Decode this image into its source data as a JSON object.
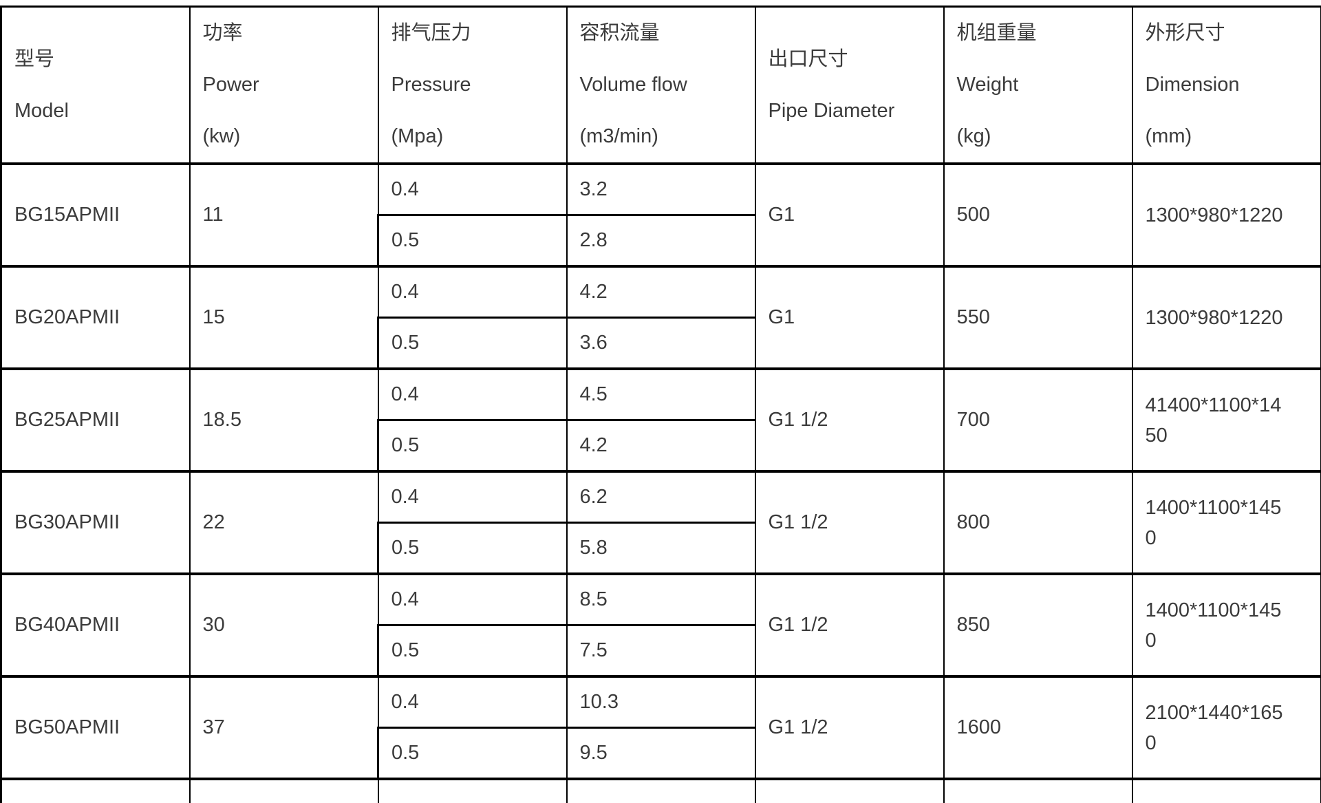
{
  "table": {
    "colors": {
      "border": "#000000",
      "text": "#3b3b3b",
      "background": "#ffffff"
    },
    "columns": [
      {
        "zh": "型号",
        "en": "Model",
        "unit": ""
      },
      {
        "zh": "功率",
        "en": "Power",
        "unit": "(kw)"
      },
      {
        "zh": "排气压力",
        "en": "Pressure",
        "unit": "(Mpa)"
      },
      {
        "zh": "容积流量",
        "en": "Volume flow",
        "unit": "(m3/min)"
      },
      {
        "zh": "出口尺寸",
        "en": "Pipe Diameter",
        "unit": ""
      },
      {
        "zh": "机组重量",
        "en": "Weight",
        "unit": "(kg)"
      },
      {
        "zh": "外形尺寸",
        "en": "Dimension",
        "unit": "(mm)"
      }
    ],
    "rows": [
      {
        "model": "BG15APMII",
        "power": "11",
        "pressures": [
          "0.4",
          "0.5"
        ],
        "flows": [
          "3.2",
          "2.8"
        ],
        "pipe": "G1",
        "weight": "500",
        "dimension": "1300*980*1220"
      },
      {
        "model": "BG20APMII",
        "power": "15",
        "pressures": [
          "0.4",
          "0.5"
        ],
        "flows": [
          "4.2",
          "3.6"
        ],
        "pipe": "G1",
        "weight": "550",
        "dimension": "1300*980*1220"
      },
      {
        "model": "BG25APMII",
        "power": "18.5",
        "pressures": [
          "0.4",
          "0.5"
        ],
        "flows": [
          "4.5",
          "4.2"
        ],
        "pipe": "G1 1/2",
        "weight": "700",
        "dimension": "41400*1100*1450"
      },
      {
        "model": "BG30APMII",
        "power": "22",
        "pressures": [
          "0.4",
          "0.5"
        ],
        "flows": [
          "6.2",
          "5.8"
        ],
        "pipe": "G1 1/2",
        "weight": "800",
        "dimension": "1400*1100*1450"
      },
      {
        "model": "BG40APMII",
        "power": "30",
        "pressures": [
          "0.4",
          "0.5"
        ],
        "flows": [
          "8.5",
          "7.5"
        ],
        "pipe": "G1 1/2",
        "weight": "850",
        "dimension": "1400*1100*1450"
      },
      {
        "model": "BG50APMII",
        "power": "37",
        "pressures": [
          "0.4",
          "0.5"
        ],
        "flows": [
          "10.3",
          "9.5"
        ],
        "pipe": "G1 1/2",
        "weight": "1600",
        "dimension": "2100*1440*1650"
      }
    ]
  }
}
